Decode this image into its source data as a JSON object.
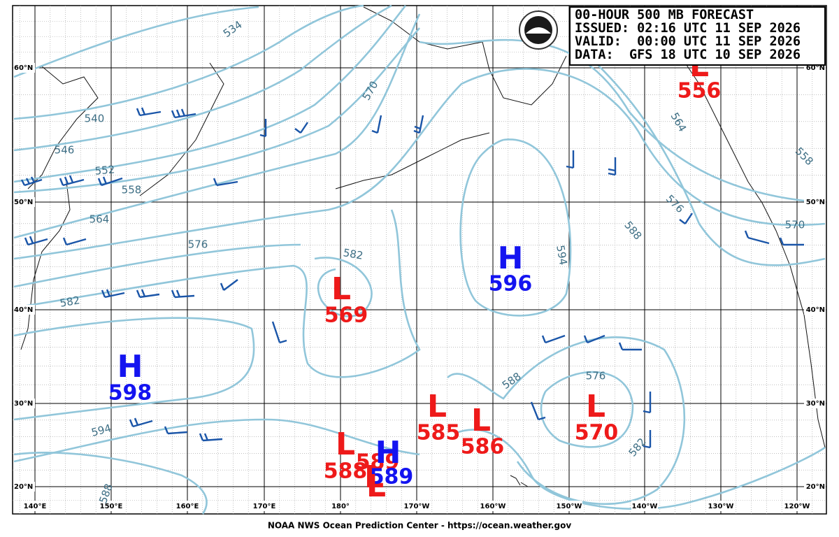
{
  "header": {
    "lines": [
      "00-HOUR 500 MB FORECAST",
      "ISSUED: 02:16 UTC 11 SEP 2026",
      "VALID:  00:00 UTC 11 SEP 2026",
      "DATA:  GFS 18 UTC 10 SEP 2026"
    ]
  },
  "lat_labels": [
    "60°N",
    "50°N",
    "40°N",
    "30°N",
    "20°N"
  ],
  "lon_labels": [
    "140°E",
    "150°E",
    "160°E",
    "170°E",
    "180°",
    "170°W",
    "160°W",
    "150°W",
    "140°W",
    "130°W",
    "120°W"
  ],
  "pressure_centers": [
    {
      "type": "L",
      "value": "556"
    },
    {
      "type": "L",
      "value": "569"
    },
    {
      "type": "H",
      "value": "596"
    },
    {
      "type": "H",
      "value": "598"
    },
    {
      "type": "L",
      "value": "585"
    },
    {
      "type": "L",
      "value": "586"
    },
    {
      "type": "L",
      "value": "570"
    },
    {
      "type": "L",
      "value": "588"
    },
    {
      "type": "L",
      "value": "589"
    },
    {
      "type": "H",
      "value": "589"
    },
    {
      "type": "L"
    }
  ],
  "contour_labels": [
    "534",
    "540",
    "546",
    "552",
    "558",
    "564",
    "570",
    "576",
    "582",
    "582",
    "594",
    "594",
    "588",
    "588",
    "588",
    "576",
    "576",
    "582",
    "564",
    "558",
    "570"
  ],
  "footer": "NOAA NWS Ocean Prediction Center - https://ocean.weather.gov"
}
